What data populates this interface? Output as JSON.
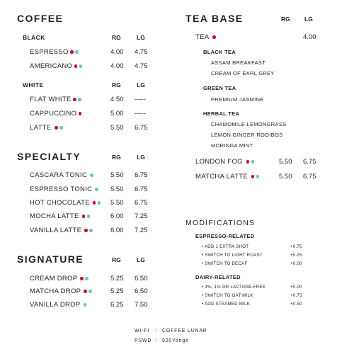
{
  "colors": {
    "red_dot": "#c8102e",
    "blue_dot": "#6ec1d6"
  },
  "coffee": {
    "title": "COFFEE",
    "black": {
      "label": "BLACK",
      "rg": "RG",
      "lg": "LG",
      "items": [
        {
          "name": "ESPRESSO",
          "dots": [
            "red",
            "blue"
          ],
          "rg": "4.00",
          "lg": "4.75"
        },
        {
          "name": "AMERICANO",
          "dots": [
            "red",
            "blue"
          ],
          "rg": "4.00",
          "lg": "4.75"
        }
      ]
    },
    "white": {
      "label": "WHITE",
      "rg": "RG",
      "lg": "LG",
      "items": [
        {
          "name": "FLAT WHITE",
          "dots": [
            "red",
            "blue"
          ],
          "rg": "4.50",
          "lg": "-----"
        },
        {
          "name": "CAPPUCCINO",
          "dots": [
            "red"
          ],
          "rg": "5.00",
          "lg": "-----"
        },
        {
          "name": "LATTE",
          "dots": [
            "red",
            "blue"
          ],
          "rg": "5.50",
          "lg": "6.75"
        }
      ]
    }
  },
  "specialty": {
    "title": "SPECIALTY",
    "rg": "RG",
    "lg": "LG",
    "items": [
      {
        "name": "CASCARA TONIC",
        "dots": [
          "blue"
        ],
        "rg": "5.50",
        "lg": "6.75"
      },
      {
        "name": "ESPRESSO TONIC",
        "dots": [
          "blue"
        ],
        "rg": "5.50",
        "lg": "6.75"
      },
      {
        "name": "HOT CHOCOLATE",
        "dots": [
          "red",
          "blue"
        ],
        "rg": "5.50",
        "lg": "6.75"
      },
      {
        "name": "MOCHA LATTE",
        "dots": [
          "red",
          "blue"
        ],
        "rg": "6.00",
        "lg": "7.25"
      },
      {
        "name": "VANILLA LATTE",
        "dots": [
          "red",
          "blue"
        ],
        "rg": "6.00",
        "lg": "7.25"
      }
    ]
  },
  "signature": {
    "title": "SIGNATURE",
    "rg": "RG",
    "lg": "LG",
    "items": [
      {
        "name": "CREAM DROP",
        "dots": [
          "red",
          "blue"
        ],
        "rg": "5.25",
        "lg": "6.50"
      },
      {
        "name": "MATCHA DROP",
        "dots": [
          "red",
          "blue"
        ],
        "rg": "5.25",
        "lg": "6.50"
      },
      {
        "name": "VANILLA DROP",
        "dots": [
          "blue"
        ],
        "rg": "6.25",
        "lg": "7.50"
      }
    ]
  },
  "tea": {
    "title": "TEA BASE",
    "rg": "RG",
    "lg": "LG",
    "tea": {
      "name": "TEA",
      "dots": [
        "red"
      ],
      "lg": "4.00"
    },
    "groups": [
      {
        "label": "BLACK TEA",
        "items": [
          "ASSAM BREAKFAST",
          "CREAM OF EARL GREY"
        ]
      },
      {
        "label": "GREEN TEA",
        "items": [
          "PREMIUM JASMINE"
        ]
      },
      {
        "label": "HERBAL TEA",
        "items": [
          "CHAMOMILE LEMONGRASS",
          "LEMON GINGER ROOIBOS",
          "MORINGA MINT"
        ]
      }
    ],
    "items": [
      {
        "name": "LONDON FOG",
        "dots": [
          "red",
          "blue"
        ],
        "rg": "5.50",
        "lg": "6.75"
      },
      {
        "name": "MATCHA LATTE",
        "dots": [
          "red",
          "blue"
        ],
        "rg": "5.50",
        "lg": "6.75"
      }
    ]
  },
  "modifications": {
    "title": "MODIFICATIONS",
    "groups": [
      {
        "label": "ESPRESSO-RELATED",
        "items": [
          {
            "name": "ADD 1 EXTRA SHOT",
            "price": "+0.75"
          },
          {
            "name": "SWITCH TO LIGHT ROAST",
            "price": "+0.25"
          },
          {
            "name": "SWITCH TO DECAF",
            "price": "+0.00"
          }
        ]
      },
      {
        "label": "DAIRY-RELATED",
        "items": [
          {
            "name": "3%, 1% OR LACTOSE-FREE",
            "price": "+0.00"
          },
          {
            "name": "SWITCH TO OAT MILK",
            "price": "+0.75"
          },
          {
            "name": "ADD STEAMED MILK",
            "price": "+0.50"
          }
        ]
      }
    ]
  },
  "footer": {
    "wifi_label": "WI-FI",
    "wifi_value": "COFFEE LUNAR",
    "pswd_label": "PSWD",
    "pswd_value": "920Yonge",
    "separator": ":"
  }
}
